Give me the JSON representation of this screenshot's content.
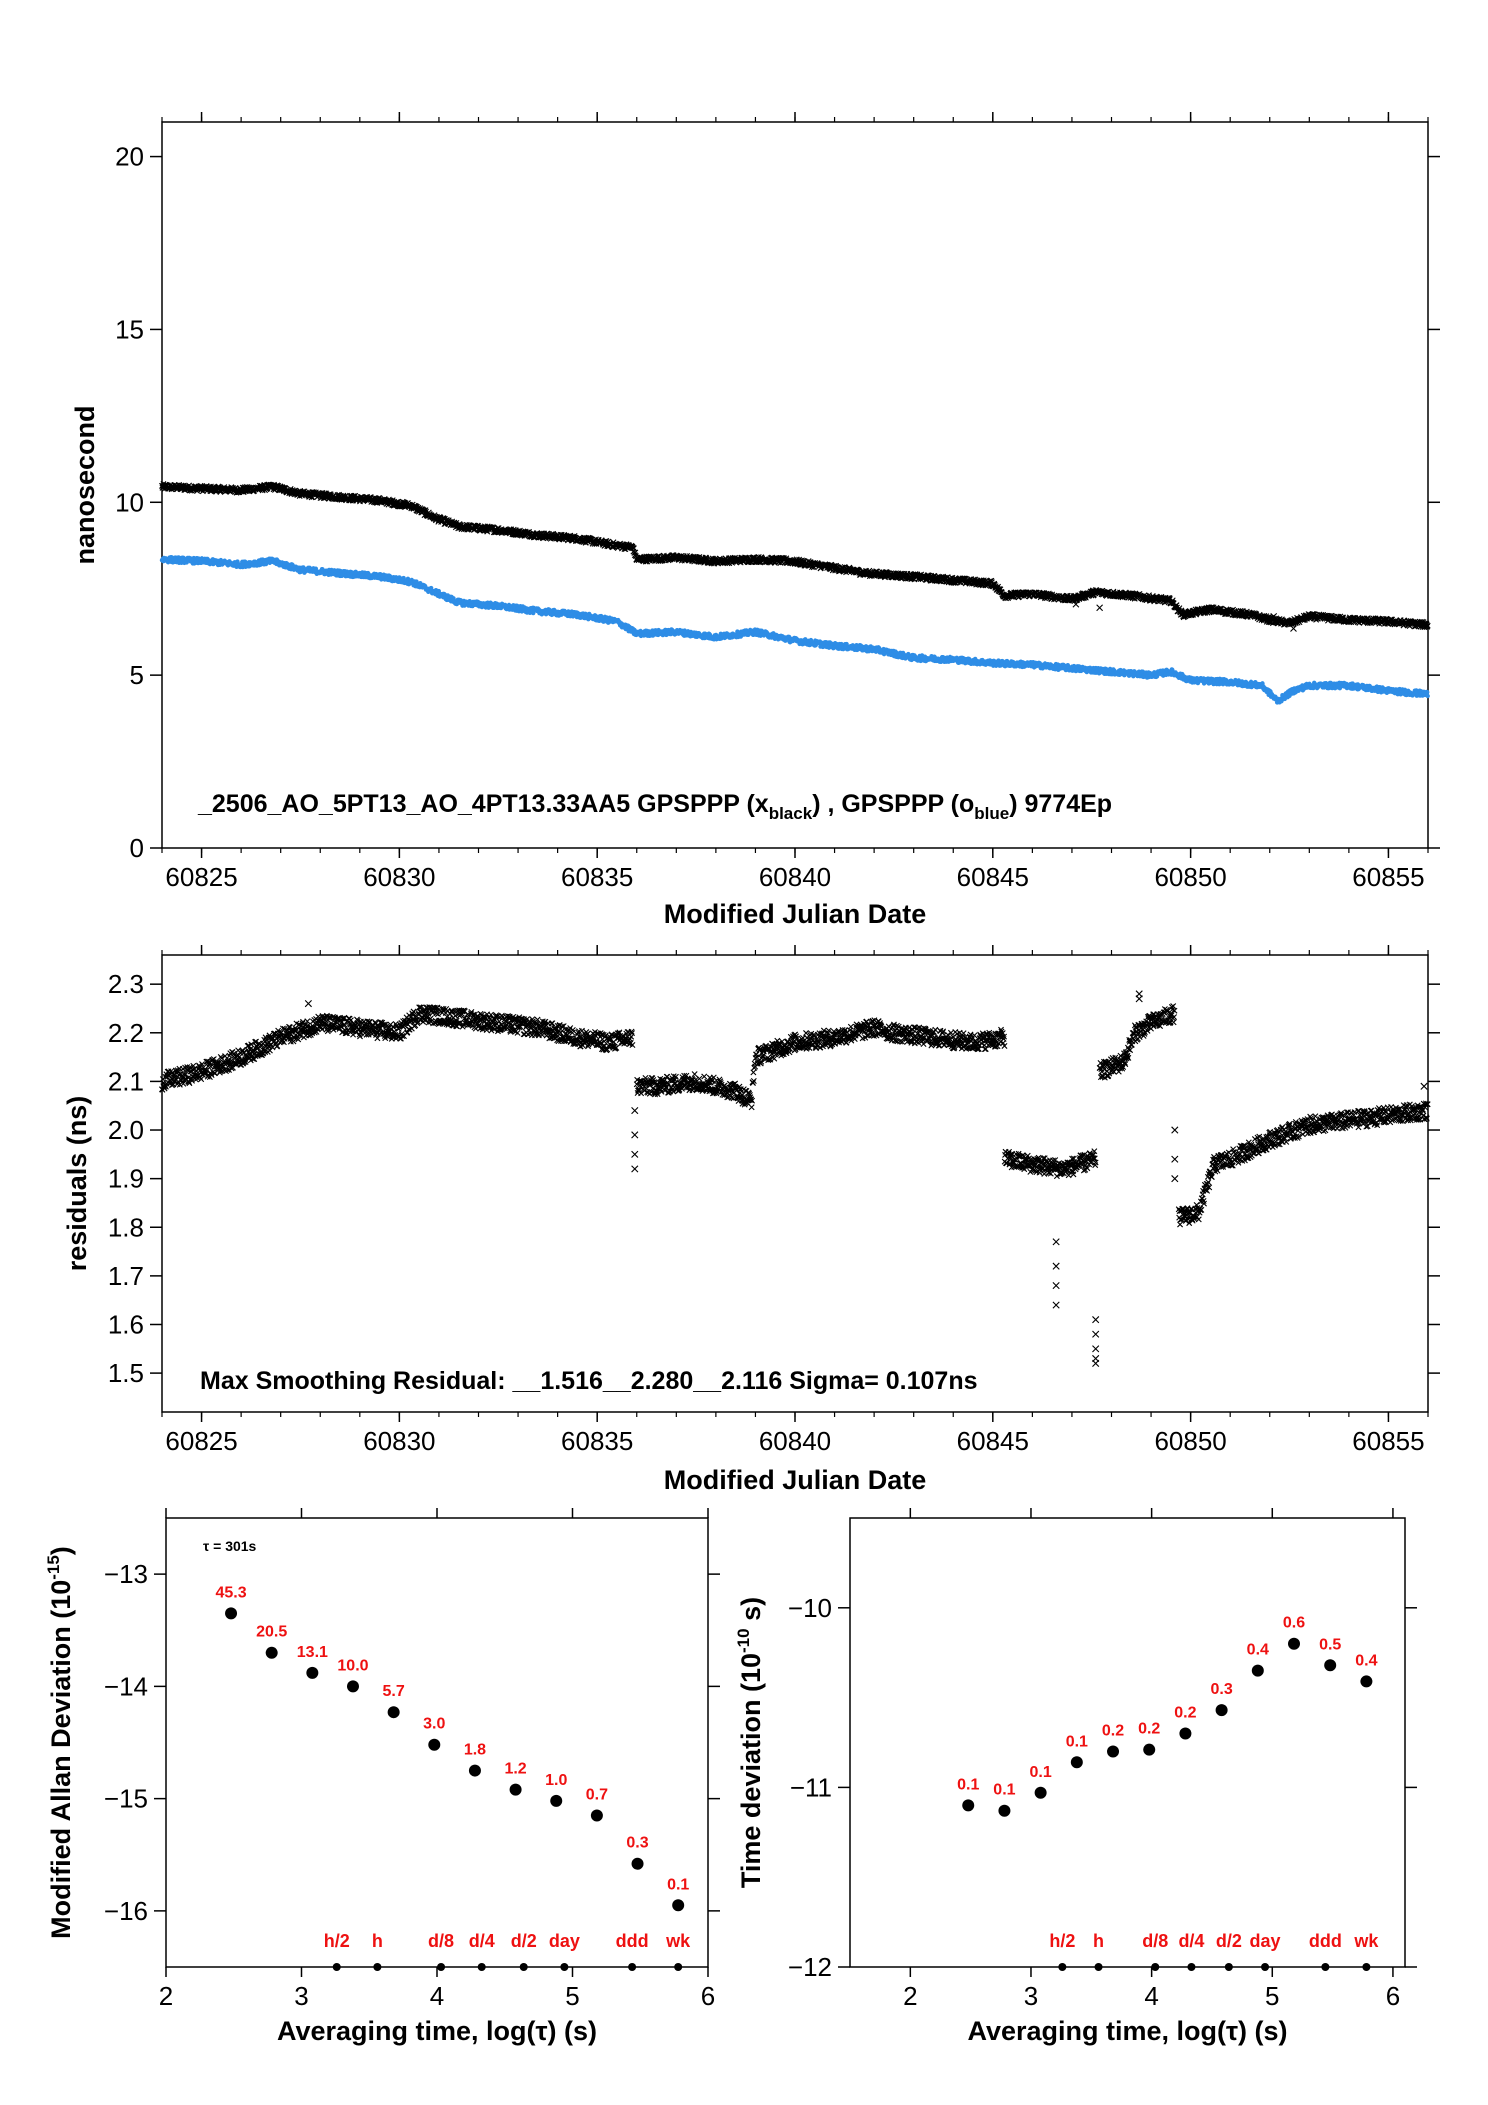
{
  "colors": {
    "black": "#000000",
    "blue": "#2e8de6",
    "red": "#ee1111",
    "frame": "#000000"
  },
  "chart_data": [
    {
      "id": "phase",
      "type": "scatter",
      "xlabel": "Modified Julian Date",
      "ylabel": "nanosecond",
      "xlim": [
        60824,
        60856
      ],
      "ylim": [
        0,
        21
      ],
      "xticks": [
        60825,
        60830,
        60835,
        60840,
        60845,
        60850,
        60855
      ],
      "yticks": [
        0,
        5,
        10,
        15,
        20
      ],
      "grid": false,
      "annotation": "_2506_AO_5PT13_AO_4PT13.33AA5    GPSPPP (x",
      "annotation_sub1": "black",
      "annotation_mid": ") ,  GPSPPP (o",
      "annotation_sub2": "blue",
      "annotation_end": ")  9774Ep",
      "series": [
        {
          "color": "black",
          "marker": "x",
          "x": [
            60824.0,
            60825.0,
            60826.0,
            60826.8,
            60827.5,
            60828.5,
            60829.5,
            60830.3,
            60830.9,
            60831.5,
            60832.5,
            60833.5,
            60834.5,
            60835.5,
            60835.9,
            60836.0,
            60837.0,
            60838.0,
            60839.0,
            60839.9,
            60841.0,
            60841.8,
            60843.0,
            60844.0,
            60845.0,
            60845.3,
            60846.0,
            60847.0,
            60847.6,
            60848.5,
            60849.5,
            60849.8,
            60850.5,
            60851.5,
            60852.0,
            60852.5,
            60853.0,
            60854.0,
            60855.0,
            60856.0
          ],
          "y": [
            10.45,
            10.4,
            10.35,
            10.45,
            10.25,
            10.15,
            10.05,
            9.9,
            9.55,
            9.3,
            9.2,
            9.05,
            8.95,
            8.75,
            8.7,
            8.35,
            8.4,
            8.3,
            8.35,
            8.3,
            8.1,
            7.95,
            7.85,
            7.75,
            7.65,
            7.3,
            7.35,
            7.2,
            7.4,
            7.3,
            7.15,
            6.75,
            6.9,
            6.75,
            6.6,
            6.5,
            6.7,
            6.6,
            6.55,
            6.45
          ]
        },
        {
          "color": "blue",
          "marker": "o",
          "x": [
            60824.0,
            60825.0,
            60826.0,
            60826.8,
            60827.5,
            60828.5,
            60829.5,
            60830.3,
            60830.8,
            60831.5,
            60832.5,
            60833.5,
            60834.5,
            60835.5,
            60836.0,
            60837.0,
            60838.0,
            60839.0,
            60840.0,
            60841.0,
            60842.0,
            60843.0,
            60844.0,
            60845.0,
            60846.0,
            60847.0,
            60848.0,
            60849.0,
            60849.5,
            60850.0,
            60851.0,
            60851.8,
            60852.2,
            60852.6,
            60853.0,
            60854.0,
            60855.0,
            60856.0
          ],
          "y": [
            8.35,
            8.3,
            8.2,
            8.3,
            8.05,
            7.95,
            7.85,
            7.7,
            7.45,
            7.1,
            7.0,
            6.85,
            6.75,
            6.55,
            6.2,
            6.25,
            6.1,
            6.25,
            6.0,
            5.85,
            5.75,
            5.5,
            5.45,
            5.35,
            5.3,
            5.2,
            5.1,
            5.0,
            5.1,
            4.85,
            4.8,
            4.7,
            4.25,
            4.55,
            4.7,
            4.7,
            4.55,
            4.45
          ]
        }
      ]
    },
    {
      "id": "residuals",
      "type": "scatter",
      "xlabel": "Modified Julian Date",
      "ylabel": "residuals (ns)",
      "xlim": [
        60824,
        60856
      ],
      "ylim": [
        1.42,
        2.36
      ],
      "xticks": [
        60825,
        60830,
        60835,
        60840,
        60845,
        60850,
        60855
      ],
      "yticks": [
        1.5,
        1.6,
        1.7,
        1.8,
        1.9,
        2.0,
        2.1,
        2.2,
        2.3
      ],
      "yticklabels": [
        "1.5",
        "1.6",
        "1.7",
        "1.8",
        "1.9",
        "2.0",
        "2.1",
        "2.2",
        "2.3"
      ],
      "grid": false,
      "annotation": "Max Smoothing Residual: __1.516__2.280__2.116  Sigma= 0.107ns",
      "series": [
        {
          "color": "black",
          "marker": "x",
          "segments": [
            {
              "x": [
                60824.0,
                60825.0,
                60826.0,
                60827.0,
                60828.0,
                60829.0,
                60830.0,
                60830.5,
                60831.5,
                60832.5,
                60833.5,
                60834.5,
                60835.3,
                60835.9
              ],
              "y": [
                2.1,
                2.12,
                2.15,
                2.19,
                2.22,
                2.21,
                2.2,
                2.24,
                2.23,
                2.22,
                2.21,
                2.19,
                2.18,
                2.19
              ]
            },
            {
              "x": [
                60836.0,
                60836.5,
                60837.5,
                60838.5,
                60838.9,
                60839.0,
                60840.0,
                60841.0,
                60842.0,
                60842.5,
                60843.5,
                60844.5,
                60845.3
              ],
              "y": [
                2.09,
                2.09,
                2.1,
                2.08,
                2.06,
                2.15,
                2.18,
                2.19,
                2.21,
                2.2,
                2.19,
                2.18,
                2.19
              ]
            },
            {
              "x": [
                60845.3,
                60846.0,
                60846.8,
                60847.6
              ],
              "y": [
                1.94,
                1.93,
                1.92,
                1.94
              ]
            },
            {
              "x": [
                60847.7,
                60848.3,
                60848.6,
                60849.0,
                60849.6
              ],
              "y": [
                2.12,
                2.14,
                2.2,
                2.22,
                2.24
              ]
            },
            {
              "x": [
                60849.7,
                60850.2,
                60850.6,
                60851.0,
                60852.0,
                60853.0,
                60854.0,
                60855.0,
                60856.0
              ],
              "y": [
                1.82,
                1.83,
                1.93,
                1.94,
                1.98,
                2.01,
                2.02,
                2.03,
                2.04
              ]
            }
          ],
          "outliers": {
            "x": [
              60835.95,
              60835.95,
              60835.95,
              60835.95,
              60846.6,
              60846.6,
              60846.6,
              60846.6,
              60847.6,
              60847.6,
              60847.6,
              60847.6,
              60847.6,
              60849.6,
              60849.6,
              60849.6,
              60848.7,
              60848.7,
              60827.7,
              60855.9
            ],
            "y": [
              2.04,
              1.99,
              1.95,
              1.92,
              1.77,
              1.72,
              1.68,
              1.64,
              1.61,
              1.58,
              1.55,
              1.53,
              1.52,
              2.0,
              1.94,
              1.9,
              2.27,
              2.28,
              2.26,
              2.09
            ]
          }
        }
      ]
    },
    {
      "id": "mdev",
      "type": "scatter",
      "xlabel": "Averaging time, log(τ) (s)",
      "ylabel_main": "Modified Allan Deviation (10",
      "ylabel_sup": "-15",
      "ylabel_end": ")",
      "xlim": [
        2,
        6
      ],
      "ylim": [
        -16.5,
        -12.5
      ],
      "xticks": [
        2,
        3,
        4,
        5,
        6
      ],
      "yticks": [
        -16,
        -15,
        -14,
        -13
      ],
      "grid": false,
      "tau_note": "τ = 301s",
      "x": [
        2.48,
        2.78,
        3.08,
        3.38,
        3.68,
        3.98,
        4.28,
        4.58,
        4.88,
        5.18,
        5.48,
        5.78
      ],
      "y": [
        -13.35,
        -13.7,
        -13.88,
        -14.0,
        -14.23,
        -14.52,
        -14.75,
        -14.92,
        -15.02,
        -15.15,
        -15.58,
        -15.95
      ],
      "point_labels": [
        "45.3",
        "20.5",
        "13.1",
        "10.0",
        "5.7",
        "3.0",
        "1.8",
        "1.2",
        "1.0",
        "0.7",
        "0.3",
        "0.1"
      ],
      "markers": {
        "x": [
          3.26,
          3.56,
          4.03,
          4.33,
          4.64,
          4.94,
          5.44,
          5.78
        ],
        "labels": [
          "h/2",
          "h",
          "d/8",
          "d/4",
          "d/2",
          "day",
          "ddd",
          "wk"
        ]
      }
    },
    {
      "id": "tdev",
      "type": "scatter",
      "xlabel": "Averaging time, log(τ) (s)",
      "ylabel_main": "Time deviation (10",
      "ylabel_sup": "-10",
      "ylabel_end": " s)",
      "xlim": [
        1.5,
        6.1
      ],
      "ylim": [
        -12,
        -9.5
      ],
      "xticks": [
        2,
        3,
        4,
        5,
        6
      ],
      "yticks": [
        -12,
        -11,
        -10
      ],
      "grid": false,
      "x": [
        2.48,
        2.78,
        3.08,
        3.38,
        3.68,
        3.98,
        4.28,
        4.58,
        4.88,
        5.18,
        5.48,
        5.78
      ],
      "y": [
        -11.1,
        -11.13,
        -11.03,
        -10.86,
        -10.8,
        -10.79,
        -10.7,
        -10.57,
        -10.35,
        -10.2,
        -10.32,
        -10.41
      ],
      "point_labels": [
        "0.1",
        "0.1",
        "0.1",
        "0.1",
        "0.2",
        "0.2",
        "0.2",
        "0.3",
        "0.4",
        "0.6",
        "0.5",
        "0.4"
      ],
      "markers": {
        "x": [
          3.26,
          3.56,
          4.03,
          4.33,
          4.64,
          4.94,
          5.44,
          5.78
        ],
        "labels": [
          "h/2",
          "h",
          "d/8",
          "d/4",
          "d/2",
          "day",
          "ddd",
          "wk"
        ]
      }
    }
  ]
}
